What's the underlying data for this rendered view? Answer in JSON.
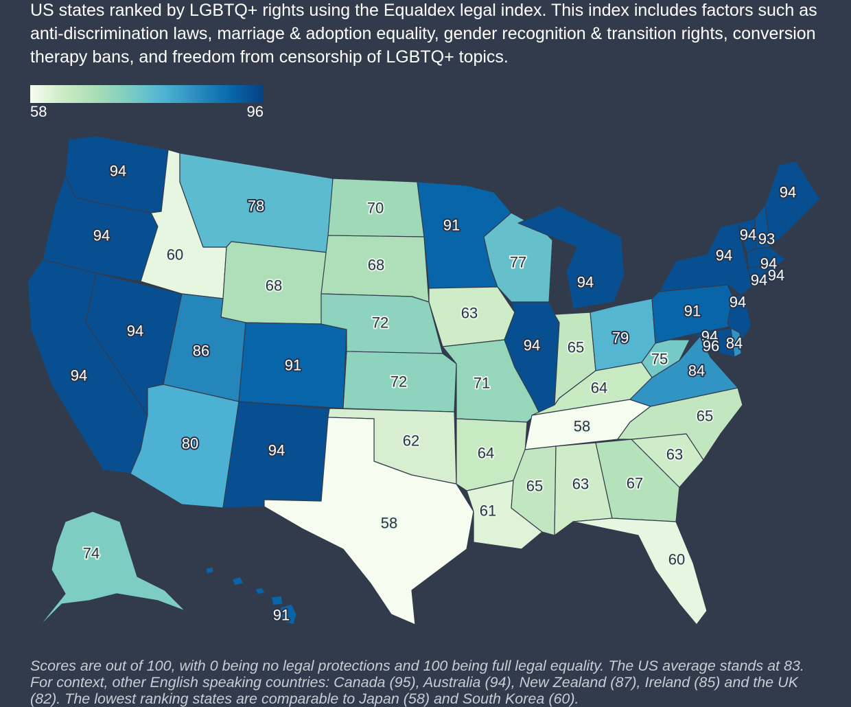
{
  "subtitle": "US states ranked by LGBTQ+ rights using the Equaldex legal index. This index includes factors such as anti-discrimination laws, marriage & adoption equality, gender recognition & transition rights, conversion therapy bans, and freedom from censorship of LGBTQ+ topics.",
  "legend": {
    "min": "58",
    "max": "96"
  },
  "footnote": "Scores are out of 100, with 0 being no legal protections and 100 being full legal equality. The US average stands at 83. For context, other English speaking countries: Canada (95), Australia (94), New Zealand (87), Ireland (85) and the UK (82). The lowest ranking states are comparable to Japan (58) and South Korea (60).",
  "states": {
    "WA": 94,
    "OR": 94,
    "CA": 94,
    "NV": 94,
    "ID": 60,
    "MT": 78,
    "WY": 68,
    "UT": 86,
    "AZ": 80,
    "CO": 91,
    "NM": 94,
    "ND": 70,
    "SD": 68,
    "NE": 72,
    "KS": 72,
    "OK": 62,
    "TX": 58,
    "MN": 91,
    "IA": 63,
    "MO": 71,
    "AR": 64,
    "LA": 61,
    "WI": 77,
    "IL": 94,
    "MI": 94,
    "IN": 65,
    "OH": 79,
    "KY": 64,
    "TN": 58,
    "MS": 65,
    "AL": 63,
    "GA": 67,
    "FL": 60,
    "SC": 63,
    "NC": 65,
    "VA": 84,
    "WV": 75,
    "PA": 91,
    "NY": 94,
    "VT": 94,
    "NH": 93,
    "ME": 94,
    "MA": 94,
    "RI": 94,
    "CT": 94,
    "NJ": 94,
    "DE": 84,
    "MD": 94,
    "DC": 96,
    "AK": 74,
    "HI": 91
  }
}
